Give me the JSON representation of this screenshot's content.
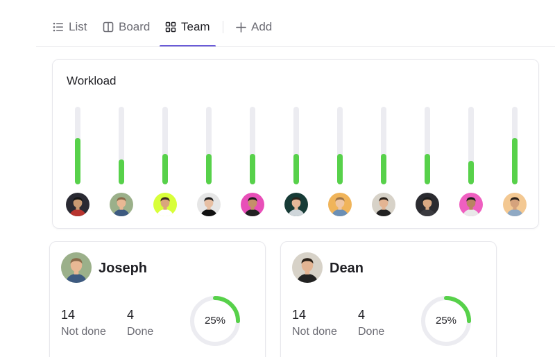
{
  "tabs": {
    "list": "List",
    "board": "Board",
    "team": "Team",
    "add": "Add",
    "active": "team"
  },
  "workload": {
    "title": "Workload",
    "fill_color": "#57d14a",
    "track_color": "#ececf1",
    "members": [
      {
        "name": "member-1",
        "load": 0.6,
        "avatar_bg": "#2a2a33",
        "skin": "#c99a72",
        "hair": "#141414",
        "shirt": "#b8342f"
      },
      {
        "name": "member-2",
        "load": 0.32,
        "avatar_bg": "#9bb08a",
        "skin": "#e8b894",
        "hair": "#8a6a4a",
        "shirt": "#3d5a80"
      },
      {
        "name": "member-3",
        "load": 0.39,
        "avatar_bg": "#d8ff3a",
        "skin": "#d9a57d",
        "hair": "#3a2a1e",
        "shirt": "#ffffff"
      },
      {
        "name": "member-4",
        "load": 0.39,
        "avatar_bg": "#e6e6e6",
        "skin": "#e7bfa3",
        "hair": "#1d1d1d",
        "shirt": "#111111"
      },
      {
        "name": "member-5",
        "load": 0.39,
        "avatar_bg": "#e84fb8",
        "skin": "#c4906a",
        "hair": "#1a1a1a",
        "shirt": "#222222"
      },
      {
        "name": "member-6",
        "load": 0.39,
        "avatar_bg": "#173b36",
        "skin": "#e5b898",
        "hair": "#2c2219",
        "shirt": "#cfd6da"
      },
      {
        "name": "member-7",
        "load": 0.39,
        "avatar_bg": "#f0b45a",
        "skin": "#efc6a4",
        "hair": "#9a7248",
        "shirt": "#6b8fb5"
      },
      {
        "name": "member-8",
        "load": 0.39,
        "avatar_bg": "#d7d2c8",
        "skin": "#e3b493",
        "hair": "#2a2018",
        "shirt": "#222222"
      },
      {
        "name": "member-9",
        "load": 0.39,
        "avatar_bg": "#2b2b30",
        "skin": "#d9a882",
        "hair": "#1b1b1b",
        "shirt": "#3a3a3f"
      },
      {
        "name": "member-10",
        "load": 0.3,
        "avatar_bg": "#ef5fc0",
        "skin": "#b98462",
        "hair": "#1a1a1a",
        "shirt": "#e9e9e9"
      },
      {
        "name": "member-11",
        "load": 0.6,
        "avatar_bg": "#f3c892",
        "skin": "#d5a27c",
        "hair": "#2b1f17",
        "shirt": "#8fa9c4"
      }
    ]
  },
  "cards": [
    {
      "name": "Joseph",
      "not_done_count": "14",
      "not_done_label": "Not done",
      "done_count": "4",
      "done_label": "Done",
      "percent_label": "25%",
      "percent": 25,
      "avatar_bg": "#9bb08a",
      "skin": "#e8b894",
      "hair": "#8a6a4a",
      "shirt": "#3d5a80"
    },
    {
      "name": "Dean",
      "not_done_count": "14",
      "not_done_label": "Not done",
      "done_count": "4",
      "done_label": "Done",
      "percent_label": "25%",
      "percent": 25,
      "avatar_bg": "#d7d2c8",
      "skin": "#e3b493",
      "hair": "#2a2018",
      "shirt": "#222222"
    }
  ],
  "colors": {
    "accent": "#6a5bd8",
    "progress": "#57d14a",
    "ring_track": "#ececf1"
  }
}
